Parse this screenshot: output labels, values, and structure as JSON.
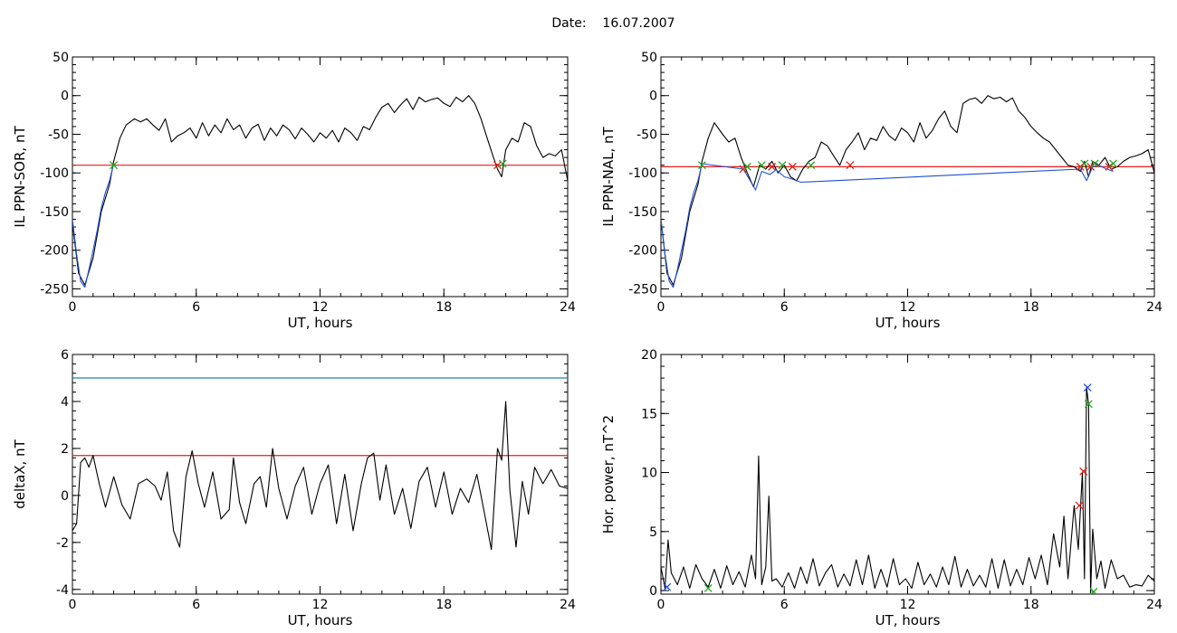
{
  "header": {
    "date_label": "Date:",
    "date_value": "16.07.2007"
  },
  "chart_data": [
    {
      "id": "il-ppn-sor",
      "type": "line",
      "xlabel": "UT, hours",
      "ylabel": "IL PPN-SOR, nT",
      "xlim": [
        0,
        24
      ],
      "ylim": [
        -260,
        50
      ],
      "xticks": [
        0,
        6,
        12,
        18,
        24
      ],
      "yticks": [
        -250,
        -200,
        -150,
        -100,
        -50,
        0,
        50
      ],
      "grid": false,
      "series": [
        {
          "color": "#000000",
          "x": [
            0,
            0.3,
            0.6,
            1.0,
            1.4,
            1.8,
            2.0,
            2.3,
            2.6,
            3.0,
            3.3,
            3.6,
            3.9,
            4.2,
            4.5,
            4.8,
            5.1,
            5.4,
            5.7,
            6.0,
            6.3,
            6.6,
            6.9,
            7.2,
            7.5,
            7.8,
            8.1,
            8.4,
            8.7,
            9.0,
            9.3,
            9.6,
            9.9,
            10.2,
            10.5,
            10.8,
            11.1,
            11.4,
            11.7,
            12.0,
            12.3,
            12.6,
            12.9,
            13.2,
            13.5,
            13.8,
            14.1,
            14.4,
            14.7,
            15.0,
            15.3,
            15.6,
            15.9,
            16.2,
            16.5,
            16.8,
            17.1,
            17.4,
            17.7,
            18.0,
            18.3,
            18.6,
            18.9,
            19.2,
            19.5,
            19.8,
            20.1,
            20.4,
            20.6,
            20.8,
            21.0,
            21.3,
            21.6,
            21.9,
            22.2,
            22.5,
            22.8,
            23.1,
            23.4,
            23.7,
            24.0
          ],
          "y": [
            -165,
            -230,
            -245,
            -210,
            -150,
            -115,
            -85,
            -55,
            -38,
            -30,
            -34,
            -30,
            -38,
            -45,
            -30,
            -60,
            -52,
            -48,
            -42,
            -55,
            -35,
            -52,
            -38,
            -48,
            -30,
            -44,
            -38,
            -55,
            -42,
            -37,
            -58,
            -42,
            -52,
            -38,
            -44,
            -56,
            -42,
            -50,
            -60,
            -48,
            -55,
            -45,
            -60,
            -42,
            -48,
            -58,
            -40,
            -44,
            -28,
            -15,
            -10,
            -22,
            -12,
            -4,
            -18,
            -2,
            -8,
            -5,
            -3,
            -10,
            -14,
            -2,
            -8,
            0,
            -10,
            -30,
            -55,
            -80,
            -95,
            -105,
            -70,
            -55,
            -60,
            -35,
            -40,
            -65,
            -80,
            -75,
            -78,
            -70,
            -110
          ]
        },
        {
          "color": "#1f4fd6",
          "x": [
            0,
            0.2,
            0.4,
            0.6,
            0.8,
            1.0,
            1.2,
            1.4,
            1.6,
            1.8,
            2.0
          ],
          "y": [
            -160,
            -205,
            -240,
            -248,
            -225,
            -200,
            -175,
            -145,
            -125,
            -110,
            -88
          ]
        }
      ],
      "hlines": [
        {
          "y": -90,
          "color": "#e0201c"
        }
      ],
      "markers": [
        {
          "x": 2.0,
          "y": -90,
          "color": "#1faa1f"
        },
        {
          "x": 20.6,
          "y": -90,
          "color": "#e0201c"
        },
        {
          "x": 20.85,
          "y": -88,
          "color": "#1faa1f"
        }
      ]
    },
    {
      "id": "il-ppn-nal",
      "type": "line",
      "xlabel": "UT, hours",
      "ylabel": "IL PPN-NAL, nT",
      "xlim": [
        0,
        24
      ],
      "ylim": [
        -260,
        50
      ],
      "xticks": [
        0,
        6,
        12,
        18,
        24
      ],
      "yticks": [
        -250,
        -200,
        -150,
        -100,
        -50,
        0,
        50
      ],
      "grid": false,
      "series": [
        {
          "color": "#000000",
          "x": [
            0,
            0.3,
            0.6,
            1.0,
            1.4,
            1.8,
            2.0,
            2.3,
            2.6,
            3.0,
            3.3,
            3.6,
            3.9,
            4.2,
            4.5,
            4.8,
            5.1,
            5.4,
            5.7,
            6.0,
            6.3,
            6.6,
            6.9,
            7.2,
            7.5,
            7.8,
            8.1,
            8.4,
            8.7,
            9.0,
            9.3,
            9.6,
            9.9,
            10.2,
            10.5,
            10.8,
            11.1,
            11.4,
            11.7,
            12.0,
            12.3,
            12.6,
            12.9,
            13.2,
            13.5,
            13.8,
            14.1,
            14.4,
            14.7,
            15.0,
            15.3,
            15.6,
            15.9,
            16.2,
            16.5,
            16.8,
            17.1,
            17.4,
            17.7,
            18.0,
            18.3,
            18.6,
            18.9,
            19.2,
            19.5,
            19.8,
            20.1,
            20.4,
            20.6,
            20.8,
            21.0,
            21.3,
            21.6,
            21.9,
            22.2,
            22.5,
            22.8,
            23.1,
            23.4,
            23.7,
            24.0
          ],
          "y": [
            -160,
            -230,
            -245,
            -210,
            -150,
            -115,
            -85,
            -55,
            -35,
            -50,
            -60,
            -55,
            -80,
            -100,
            -118,
            -90,
            -95,
            -85,
            -100,
            -90,
            -105,
            -110,
            -95,
            -85,
            -80,
            -60,
            -65,
            -78,
            -90,
            -70,
            -60,
            -48,
            -70,
            -55,
            -58,
            -40,
            -52,
            -58,
            -42,
            -48,
            -60,
            -35,
            -55,
            -45,
            -30,
            -20,
            -40,
            -48,
            -10,
            -5,
            -3,
            -10,
            0,
            -4,
            -2,
            -8,
            -3,
            -20,
            -28,
            -40,
            -48,
            -55,
            -60,
            -70,
            -80,
            -90,
            -92,
            -98,
            -85,
            -105,
            -85,
            -90,
            -80,
            -95,
            -92,
            -85,
            -80,
            -78,
            -75,
            -70,
            -100
          ]
        },
        {
          "color": "#1f4fd6",
          "x": [
            0,
            0.2,
            0.4,
            0.6,
            0.8,
            1.0,
            1.2,
            1.4,
            1.6,
            1.8,
            2.0,
            4.0,
            4.3,
            4.6,
            4.9,
            5.3,
            5.6,
            6.0,
            6.4,
            6.8,
            20.4,
            20.7,
            21.0,
            21.3,
            21.6,
            22.0
          ],
          "y": [
            -160,
            -205,
            -240,
            -248,
            -225,
            -200,
            -175,
            -145,
            -125,
            -110,
            -88,
            -95,
            -108,
            -122,
            -98,
            -102,
            -96,
            -105,
            -108,
            -112,
            -95,
            -110,
            -92,
            -90,
            -94,
            -98
          ]
        }
      ],
      "hlines": [
        {
          "y": -92,
          "color": "#e0201c"
        }
      ],
      "markers": [
        {
          "x": 2.0,
          "y": -90,
          "color": "#1faa1f"
        },
        {
          "x": 4.0,
          "y": -95,
          "color": "#e0201c"
        },
        {
          "x": 4.2,
          "y": -92,
          "color": "#1faa1f"
        },
        {
          "x": 4.9,
          "y": -90,
          "color": "#1faa1f"
        },
        {
          "x": 5.4,
          "y": -92,
          "color": "#e0201c"
        },
        {
          "x": 5.9,
          "y": -90,
          "color": "#1faa1f"
        },
        {
          "x": 6.4,
          "y": -92,
          "color": "#e0201c"
        },
        {
          "x": 7.3,
          "y": -90,
          "color": "#1faa1f"
        },
        {
          "x": 9.2,
          "y": -90,
          "color": "#e0201c"
        },
        {
          "x": 20.4,
          "y": -92,
          "color": "#e0201c"
        },
        {
          "x": 20.6,
          "y": -88,
          "color": "#1faa1f"
        },
        {
          "x": 20.9,
          "y": -92,
          "color": "#e0201c"
        },
        {
          "x": 21.1,
          "y": -88,
          "color": "#1faa1f"
        },
        {
          "x": 21.8,
          "y": -92,
          "color": "#e0201c"
        },
        {
          "x": 22.0,
          "y": -88,
          "color": "#1faa1f"
        }
      ]
    },
    {
      "id": "deltax",
      "type": "line",
      "xlabel": "UT, hours",
      "ylabel": "deltaX, nT",
      "xlim": [
        0,
        24
      ],
      "ylim": [
        -4.2,
        6
      ],
      "xticks": [
        0,
        6,
        12,
        18,
        24
      ],
      "yticks": [
        -4,
        -2,
        0,
        2,
        4,
        6
      ],
      "grid": false,
      "series": [
        {
          "color": "#000000",
          "x": [
            0,
            0.2,
            0.4,
            0.6,
            0.8,
            1.0,
            1.3,
            1.6,
            2.0,
            2.4,
            2.8,
            3.2,
            3.6,
            4.0,
            4.3,
            4.6,
            4.9,
            5.2,
            5.5,
            5.8,
            6.1,
            6.4,
            6.8,
            7.2,
            7.6,
            7.8,
            8.1,
            8.4,
            8.8,
            9.1,
            9.4,
            9.7,
            10.0,
            10.4,
            10.8,
            11.2,
            11.6,
            12.0,
            12.4,
            12.8,
            13.2,
            13.6,
            14.0,
            14.3,
            14.6,
            14.9,
            15.2,
            15.6,
            16.0,
            16.4,
            16.8,
            17.2,
            17.6,
            18.0,
            18.4,
            18.8,
            19.2,
            19.6,
            20.0,
            20.3,
            20.6,
            20.8,
            21.0,
            21.2,
            21.5,
            21.8,
            22.1,
            22.4,
            22.8,
            23.2,
            23.6,
            24.0
          ],
          "y": [
            -1.5,
            -1.2,
            1.4,
            1.6,
            1.2,
            1.7,
            0.5,
            -0.5,
            0.8,
            -0.4,
            -1.0,
            0.5,
            0.7,
            0.4,
            -0.2,
            1.0,
            -1.5,
            -2.2,
            0.8,
            1.9,
            0.5,
            -0.5,
            1.0,
            -1.0,
            -0.6,
            1.6,
            -0.3,
            -1.2,
            0.5,
            0.8,
            -0.5,
            2.0,
            0.3,
            -1.0,
            0.4,
            1.2,
            -0.8,
            0.5,
            1.3,
            -1.2,
            0.9,
            -1.5,
            0.5,
            1.6,
            1.8,
            -0.2,
            1.3,
            -0.8,
            0.3,
            -1.4,
            0.6,
            1.2,
            -0.5,
            1.0,
            -0.8,
            0.3,
            -0.3,
            0.9,
            -0.9,
            -2.3,
            2.0,
            1.5,
            4.0,
            0.2,
            -2.2,
            0.6,
            -0.8,
            1.2,
            0.5,
            1.1,
            0.4,
            0.3
          ]
        }
      ],
      "hlines": [
        {
          "y": 5.0,
          "color": "#1f7fb5"
        },
        {
          "y": 1.7,
          "color": "#e0201c"
        }
      ],
      "markers": []
    },
    {
      "id": "hor-power",
      "type": "line",
      "xlabel": "UT, hours",
      "ylabel": "Hor. power, nT^2",
      "xlim": [
        0,
        24
      ],
      "ylim": [
        -0.3,
        20
      ],
      "xticks": [
        0,
        6,
        12,
        18,
        24
      ],
      "yticks": [
        0,
        5,
        10,
        15,
        20
      ],
      "grid": false,
      "series": [
        {
          "color": "#000000",
          "x": [
            0,
            0.2,
            0.35,
            0.5,
            0.8,
            1.1,
            1.4,
            1.7,
            2.0,
            2.3,
            2.6,
            2.9,
            3.2,
            3.5,
            3.8,
            4.1,
            4.4,
            4.6,
            4.75,
            4.9,
            5.1,
            5.25,
            5.4,
            5.6,
            5.9,
            6.2,
            6.5,
            6.8,
            7.1,
            7.4,
            7.7,
            8.0,
            8.3,
            8.6,
            8.9,
            9.2,
            9.5,
            9.8,
            10.1,
            10.4,
            10.7,
            11.0,
            11.3,
            11.6,
            11.9,
            12.2,
            12.5,
            12.8,
            13.1,
            13.4,
            13.7,
            14.0,
            14.3,
            14.6,
            14.9,
            15.2,
            15.5,
            15.8,
            16.1,
            16.4,
            16.7,
            17.0,
            17.3,
            17.6,
            17.9,
            18.2,
            18.5,
            18.8,
            19.1,
            19.4,
            19.6,
            19.8,
            20.1,
            20.3,
            20.5,
            20.6,
            20.7,
            20.8,
            20.9,
            21.0,
            21.2,
            21.4,
            21.6,
            21.9,
            22.2,
            22.5,
            22.8,
            23.1,
            23.4,
            23.7,
            24.0
          ],
          "y": [
            2.0,
            0.2,
            4.3,
            1.5,
            0.5,
            2.0,
            0.2,
            2.2,
            1.0,
            0.3,
            1.8,
            0.2,
            2.1,
            0.5,
            1.6,
            0.3,
            3.0,
            1.0,
            11.4,
            0.5,
            2.0,
            8.0,
            0.8,
            1.0,
            0.3,
            1.5,
            0.2,
            2.0,
            0.6,
            2.7,
            0.4,
            1.5,
            2.2,
            0.3,
            1.4,
            0.4,
            2.6,
            0.5,
            3.0,
            0.2,
            1.8,
            0.3,
            2.7,
            0.5,
            1.0,
            0.2,
            2.4,
            0.5,
            1.4,
            0.3,
            2.0,
            0.5,
            2.9,
            0.3,
            1.8,
            0.4,
            1.3,
            0.3,
            2.7,
            0.2,
            2.6,
            0.4,
            1.8,
            0.5,
            2.8,
            1.0,
            3.0,
            0.5,
            4.8,
            2.0,
            6.3,
            1.0,
            7.2,
            3.5,
            10.0,
            1.0,
            17.2,
            15.8,
            -0.2,
            5.2,
            1.0,
            2.5,
            0.2,
            2.6,
            1.0,
            1.3,
            0.3,
            0.5,
            0.4,
            1.3,
            0.8
          ]
        }
      ],
      "hlines": [],
      "markers": [
        {
          "x": 0.3,
          "y": 0.3,
          "color": "#1f4fd6"
        },
        {
          "x": 2.3,
          "y": 0.2,
          "color": "#1faa1f"
        },
        {
          "x": 20.35,
          "y": 7.2,
          "color": "#e0201c"
        },
        {
          "x": 20.55,
          "y": 10.1,
          "color": "#e0201c"
        },
        {
          "x": 20.75,
          "y": 17.2,
          "color": "#1f4fd6"
        },
        {
          "x": 20.8,
          "y": 15.8,
          "color": "#1faa1f"
        },
        {
          "x": 21.05,
          "y": -0.1,
          "color": "#1faa1f"
        }
      ]
    }
  ]
}
